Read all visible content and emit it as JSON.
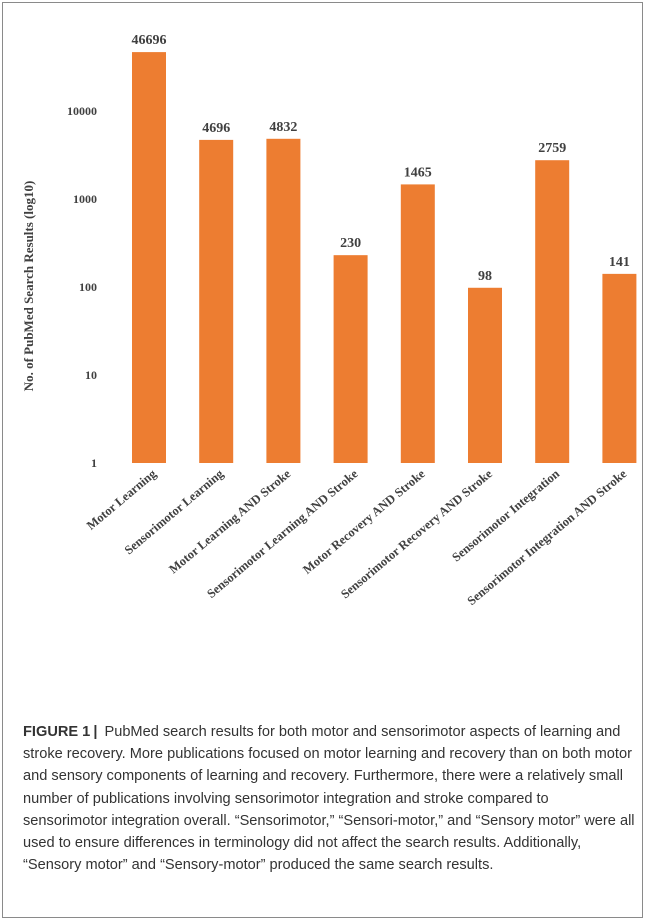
{
  "chart_data": {
    "type": "bar",
    "ylabel": "No. of PubMed Search Results (log10)",
    "yscale": "log",
    "ylim": [
      1,
      46696
    ],
    "yticks": [
      "1",
      "10",
      "100",
      "1000",
      "10000"
    ],
    "categories": [
      "Motor Learning",
      "Sensorimotor Learning",
      "Motor Learning AND Stroke",
      "Sensorimotor Learning AND Stroke",
      "Motor Recovery AND Stroke",
      "Sensorimotor Recovery AND Stroke",
      "Sensorimotor Integration",
      "Sensorimotor Integration AND Stroke"
    ],
    "values": [
      46696,
      4696,
      4832,
      230,
      1465,
      98,
      2759,
      141
    ],
    "bar_color": "#ED7D31",
    "grid": false,
    "legend": false
  },
  "caption": {
    "figure_label": "FIGURE 1",
    "separator": "|",
    "text": "PubMed search results for both motor and sensorimotor aspects of learning and stroke recovery. More publications focused on motor learning and recovery than on both motor and sensory components of learning and recovery. Furthermore, there were a relatively small number of publications involving sensorimotor integration and stroke compared to sensorimotor integration overall. “Sensorimotor,” “Sensori-motor,” and “Sensory motor” were all used to ensure differences in terminology did not affect the search results. Additionally, “Sensory motor” and “Sensory-motor” produced the same search results."
  }
}
